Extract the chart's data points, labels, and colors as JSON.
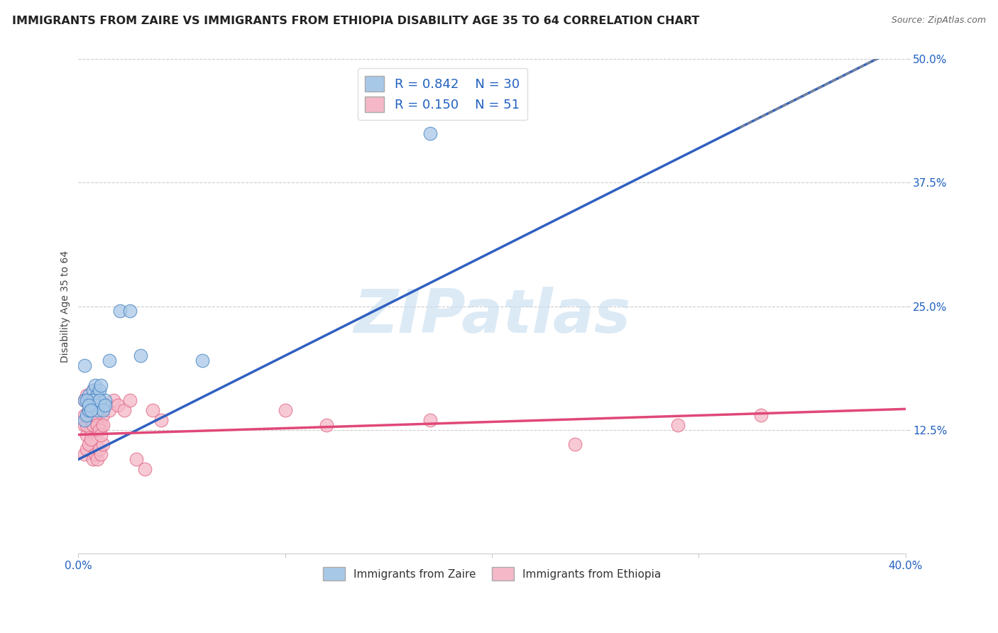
{
  "title": "IMMIGRANTS FROM ZAIRE VS IMMIGRANTS FROM ETHIOPIA DISABILITY AGE 35 TO 64 CORRELATION CHART",
  "source": "Source: ZipAtlas.com",
  "ylabel": "Disability Age 35 to 64",
  "xlim": [
    0.0,
    0.4
  ],
  "ylim": [
    0.0,
    0.5
  ],
  "xticks": [
    0.0,
    0.1,
    0.2,
    0.3,
    0.4
  ],
  "xtick_labels": [
    "0.0%",
    "",
    "",
    "",
    "40.0%"
  ],
  "ytick_labels_right": [
    "12.5%",
    "25.0%",
    "37.5%",
    "50.0%"
  ],
  "yticks_right": [
    0.125,
    0.25,
    0.375,
    0.5
  ],
  "watermark": "ZIPatlas",
  "zaire_color": "#a8c8e8",
  "ethiopia_color": "#f4b8c8",
  "zaire_line_color": "#3060c0",
  "ethiopia_line_color": "#e04878",
  "zaire_scatter_x": [
    0.003,
    0.005,
    0.006,
    0.007,
    0.008,
    0.009,
    0.01,
    0.011,
    0.012,
    0.013,
    0.003,
    0.004,
    0.005,
    0.006,
    0.007,
    0.008,
    0.009,
    0.01,
    0.012,
    0.013,
    0.003,
    0.004,
    0.005,
    0.006,
    0.015,
    0.02,
    0.025,
    0.03,
    0.06,
    0.17
  ],
  "zaire_scatter_y": [
    0.155,
    0.16,
    0.155,
    0.165,
    0.17,
    0.16,
    0.165,
    0.17,
    0.15,
    0.155,
    0.135,
    0.14,
    0.145,
    0.15,
    0.155,
    0.15,
    0.145,
    0.155,
    0.145,
    0.15,
    0.19,
    0.155,
    0.15,
    0.145,
    0.195,
    0.245,
    0.245,
    0.2,
    0.195,
    0.425
  ],
  "ethiopia_scatter_x": [
    0.003,
    0.004,
    0.005,
    0.006,
    0.007,
    0.008,
    0.009,
    0.01,
    0.011,
    0.012,
    0.003,
    0.004,
    0.005,
    0.006,
    0.007,
    0.008,
    0.009,
    0.01,
    0.011,
    0.012,
    0.003,
    0.004,
    0.005,
    0.006,
    0.007,
    0.008,
    0.009,
    0.01,
    0.011,
    0.012,
    0.013,
    0.015,
    0.017,
    0.019,
    0.022,
    0.025,
    0.028,
    0.032,
    0.036,
    0.04,
    0.003,
    0.004,
    0.005,
    0.006,
    0.007,
    0.1,
    0.12,
    0.17,
    0.24,
    0.29,
    0.33
  ],
  "ethiopia_scatter_y": [
    0.13,
    0.12,
    0.135,
    0.125,
    0.13,
    0.14,
    0.125,
    0.145,
    0.13,
    0.14,
    0.1,
    0.105,
    0.11,
    0.115,
    0.095,
    0.1,
    0.095,
    0.105,
    0.1,
    0.11,
    0.14,
    0.13,
    0.145,
    0.135,
    0.13,
    0.14,
    0.13,
    0.125,
    0.12,
    0.13,
    0.15,
    0.145,
    0.155,
    0.15,
    0.145,
    0.155,
    0.095,
    0.085,
    0.145,
    0.135,
    0.155,
    0.16,
    0.155,
    0.15,
    0.165,
    0.145,
    0.13,
    0.135,
    0.11,
    0.13,
    0.14
  ],
  "background_color": "#ffffff",
  "grid_color": "#cccccc",
  "title_fontsize": 11.5,
  "axis_label_fontsize": 10,
  "tick_fontsize": 11,
  "zaire_line_intercept": 0.095,
  "zaire_line_slope": 1.05,
  "ethiopia_line_intercept": 0.12,
  "ethiopia_line_slope": 0.065
}
